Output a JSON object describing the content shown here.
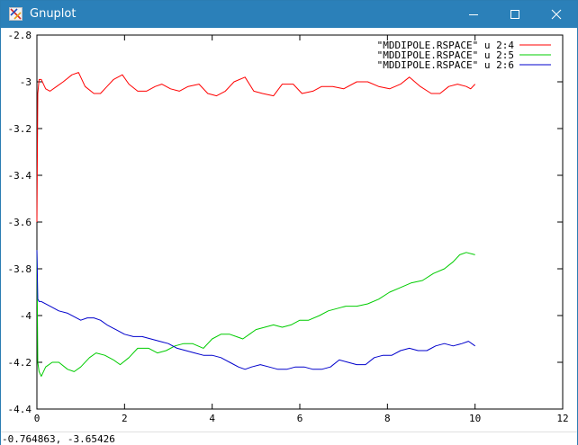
{
  "window": {
    "title": "Gnuplot",
    "controls": {
      "minimize": "minimize",
      "maximize": "maximize",
      "close": "close"
    },
    "title_color": "#2b80b9"
  },
  "status": {
    "coordinates": "-0.764863, -3.65426"
  },
  "chart_data": {
    "type": "line",
    "xlim": [
      0,
      12
    ],
    "ylim": [
      -4.4,
      -2.8
    ],
    "x_ticks": [
      0,
      2,
      4,
      6,
      8,
      10,
      12
    ],
    "y_ticks": [
      -2.8,
      -3,
      -3.2,
      -3.4,
      -3.6,
      -3.8,
      -4,
      -4.2,
      -4.4
    ],
    "x_tick_labels": [
      "0",
      "2",
      "4",
      "6",
      "8",
      "10",
      "12"
    ],
    "y_tick_labels": [
      "-2.8",
      "-3",
      "-3.2",
      "-3.4",
      "-3.6",
      "-3.8",
      "-4",
      "-4.2",
      "-4.4"
    ],
    "grid": false,
    "legend_position": "top-right",
    "series": [
      {
        "name": "\"MDDIPOLE.RSPACE\" u 2:4",
        "color": "#ff0000",
        "x": [
          0,
          0.02,
          0.05,
          0.1,
          0.2,
          0.3,
          0.45,
          0.6,
          0.8,
          0.95,
          1.1,
          1.3,
          1.45,
          1.6,
          1.75,
          1.95,
          2.1,
          2.3,
          2.5,
          2.7,
          2.85,
          3.05,
          3.25,
          3.45,
          3.7,
          3.9,
          4.1,
          4.3,
          4.5,
          4.75,
          4.95,
          5.15,
          5.4,
          5.6,
          5.85,
          6.05,
          6.3,
          6.5,
          6.75,
          7.0,
          7.3,
          7.55,
          7.8,
          8.05,
          8.3,
          8.5,
          8.75,
          9.0,
          9.2,
          9.4,
          9.6,
          9.8,
          9.9,
          10.0
        ],
        "y": [
          -3.6,
          -3.05,
          -2.99,
          -2.99,
          -3.03,
          -3.04,
          -3.02,
          -3.0,
          -2.97,
          -2.96,
          -3.02,
          -3.05,
          -3.05,
          -3.02,
          -2.99,
          -2.97,
          -3.01,
          -3.04,
          -3.04,
          -3.02,
          -3.01,
          -3.03,
          -3.04,
          -3.02,
          -3.01,
          -3.05,
          -3.06,
          -3.04,
          -3.0,
          -2.98,
          -3.04,
          -3.05,
          -3.06,
          -3.01,
          -3.01,
          -3.05,
          -3.04,
          -3.02,
          -3.02,
          -3.03,
          -3.0,
          -3.0,
          -3.02,
          -3.03,
          -3.01,
          -2.98,
          -3.02,
          -3.05,
          -3.05,
          -3.02,
          -3.01,
          -3.02,
          -3.03,
          -3.01
        ]
      },
      {
        "name": "\"MDDIPOLE.RSPACE\" u 2:5",
        "color": "#00cc00",
        "x": [
          0,
          0.02,
          0.05,
          0.1,
          0.2,
          0.35,
          0.5,
          0.7,
          0.85,
          1.0,
          1.2,
          1.35,
          1.55,
          1.75,
          1.9,
          2.1,
          2.3,
          2.55,
          2.75,
          2.95,
          3.15,
          3.35,
          3.55,
          3.8,
          4.0,
          4.2,
          4.4,
          4.55,
          4.7,
          4.85,
          5.0,
          5.2,
          5.4,
          5.6,
          5.8,
          6.0,
          6.2,
          6.45,
          6.65,
          6.85,
          7.05,
          7.3,
          7.55,
          7.8,
          8.05,
          8.3,
          8.55,
          8.8,
          9.05,
          9.3,
          9.5,
          9.65,
          9.8,
          10.0
        ],
        "y": [
          -3.72,
          -4.2,
          -4.24,
          -4.26,
          -4.22,
          -4.2,
          -4.2,
          -4.23,
          -4.24,
          -4.22,
          -4.18,
          -4.16,
          -4.17,
          -4.19,
          -4.21,
          -4.18,
          -4.14,
          -4.14,
          -4.16,
          -4.15,
          -4.13,
          -4.12,
          -4.12,
          -4.14,
          -4.1,
          -4.08,
          -4.08,
          -4.09,
          -4.1,
          -4.08,
          -4.06,
          -4.05,
          -4.04,
          -4.05,
          -4.04,
          -4.02,
          -4.02,
          -4.0,
          -3.98,
          -3.97,
          -3.96,
          -3.96,
          -3.95,
          -3.93,
          -3.9,
          -3.88,
          -3.86,
          -3.85,
          -3.82,
          -3.8,
          -3.77,
          -3.74,
          -3.73,
          -3.74
        ]
      },
      {
        "name": "\"MDDIPOLE.RSPACE\" u 2:6",
        "color": "#0000cc",
        "x": [
          0,
          0.02,
          0.05,
          0.1,
          0.3,
          0.5,
          0.7,
          0.9,
          1.0,
          1.15,
          1.3,
          1.45,
          1.6,
          1.8,
          2.0,
          2.2,
          2.4,
          2.6,
          2.8,
          3.0,
          3.2,
          3.4,
          3.6,
          3.8,
          4.0,
          4.2,
          4.4,
          4.6,
          4.75,
          4.9,
          5.1,
          5.3,
          5.5,
          5.7,
          5.9,
          6.1,
          6.3,
          6.5,
          6.7,
          6.9,
          7.1,
          7.3,
          7.5,
          7.7,
          7.9,
          8.1,
          8.3,
          8.5,
          8.7,
          8.9,
          9.1,
          9.3,
          9.5,
          9.7,
          9.85,
          10.0
        ],
        "y": [
          -3.72,
          -3.93,
          -3.94,
          -3.94,
          -3.96,
          -3.98,
          -3.99,
          -4.01,
          -4.02,
          -4.01,
          -4.01,
          -4.02,
          -4.04,
          -4.06,
          -4.08,
          -4.09,
          -4.09,
          -4.1,
          -4.11,
          -4.12,
          -4.14,
          -4.15,
          -4.16,
          -4.17,
          -4.17,
          -4.18,
          -4.2,
          -4.22,
          -4.23,
          -4.22,
          -4.21,
          -4.22,
          -4.23,
          -4.23,
          -4.22,
          -4.22,
          -4.23,
          -4.23,
          -4.22,
          -4.19,
          -4.2,
          -4.21,
          -4.21,
          -4.18,
          -4.17,
          -4.17,
          -4.15,
          -4.14,
          -4.15,
          -4.15,
          -4.13,
          -4.12,
          -4.13,
          -4.12,
          -4.11,
          -4.13
        ]
      }
    ]
  }
}
